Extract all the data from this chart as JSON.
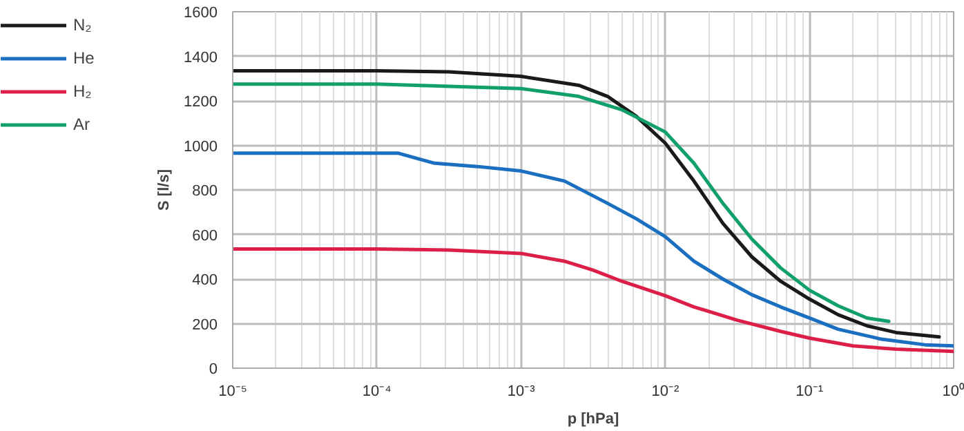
{
  "chart_data": {
    "type": "line",
    "xlabel": "p [hPa]",
    "ylabel": "S [l/s]",
    "log": "x",
    "grid": true,
    "legend": "left",
    "line_style": "solid",
    "marker": "none",
    "xlim": [
      1e-05,
      1
    ],
    "ylim": [
      0,
      1600
    ],
    "xticks": [
      {
        "value": 1e-05,
        "label": "10⁻⁵"
      },
      {
        "value": 0.0001,
        "label": "10⁻⁴"
      },
      {
        "value": 0.001,
        "label": "10⁻³"
      },
      {
        "value": 0.01,
        "label": "10⁻²"
      },
      {
        "value": 0.1,
        "label": "10⁻¹"
      },
      {
        "value": 1,
        "label": "10⁰"
      }
    ],
    "yticks": [
      0,
      200,
      400,
      600,
      800,
      1000,
      1200,
      1400,
      1600
    ],
    "series": [
      {
        "name": "N₂",
        "color": "#1a1a1a",
        "x": [
          1e-05,
          0.0001,
          0.000316,
          0.001,
          0.00251,
          0.00398,
          0.00631,
          0.01,
          0.0158,
          0.0251,
          0.0398,
          0.0631,
          0.1,
          0.158,
          0.251,
          0.398,
          0.794
        ],
        "values": [
          1335,
          1335,
          1330,
          1310,
          1270,
          1220,
          1130,
          1010,
          840,
          650,
          500,
          390,
          310,
          240,
          190,
          160,
          140
        ]
      },
      {
        "name": "He",
        "color": "#1a6fc0",
        "x": [
          1e-05,
          0.000141,
          0.000251,
          0.000501,
          0.001,
          0.002,
          0.00398,
          0.00631,
          0.01,
          0.0158,
          0.0251,
          0.0398,
          0.0631,
          0.1,
          0.158,
          0.316,
          0.631,
          1
        ],
        "values": [
          965,
          965,
          920,
          905,
          885,
          840,
          740,
          670,
          590,
          480,
          400,
          330,
          275,
          225,
          175,
          130,
          105,
          100
        ]
      },
      {
        "name": "H₂",
        "color": "#dc1f48",
        "x": [
          1e-05,
          0.0001,
          0.000316,
          0.001,
          0.002,
          0.00316,
          0.005,
          0.01,
          0.0158,
          0.0316,
          0.0631,
          0.1,
          0.2,
          0.398,
          1
        ],
        "values": [
          535,
          535,
          530,
          515,
          480,
          440,
          390,
          325,
          275,
          215,
          165,
          135,
          100,
          85,
          75
        ]
      },
      {
        "name": "Ar",
        "color": "#12a06a",
        "x": [
          1e-05,
          0.0001,
          0.001,
          0.00251,
          0.005,
          0.01,
          0.0158,
          0.0251,
          0.0398,
          0.0631,
          0.1,
          0.158,
          0.251,
          0.355
        ],
        "values": [
          1275,
          1275,
          1255,
          1220,
          1160,
          1060,
          920,
          740,
          580,
          450,
          350,
          280,
          225,
          210
        ]
      }
    ]
  }
}
